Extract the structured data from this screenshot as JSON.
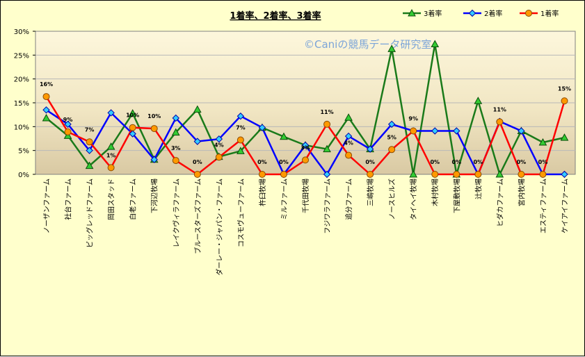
{
  "chart_data": {
    "type": "line",
    "title": "1着率、2着率、3着率",
    "watermark": "©Caniの競馬データ研究室",
    "ylim": [
      0,
      30
    ],
    "yticks": [
      "0%",
      "5%",
      "10%",
      "15%",
      "20%",
      "25%",
      "30%"
    ],
    "grid": true,
    "legend_position": "top-right",
    "categories": [
      "ノーザンファーム",
      "社台ファーム",
      "ビッグレッドファーム",
      "岡田スタッド",
      "白老ファーム",
      "下河辺牧場",
      "レイクヴィラファーム",
      "ブルースターズファーム",
      "ダーレー・ジャパン・ファーム",
      "コスモヴューファーム",
      "杵臼牧場",
      "ミルファーム",
      "千代田牧場",
      "フジワラファーム",
      "追分ファーム",
      "三嶋牧場",
      "ノースヒルズ",
      "タイヘイ牧場",
      "木村牧場",
      "下屋敷牧場",
      "辻牧場",
      "ヒダカファーム",
      "宮内牧場",
      "エスティファーム",
      "ケイアイファーム"
    ],
    "series": [
      {
        "name": "3着率",
        "color": "#1a7a1a",
        "marker": "triangle",
        "marker_fill": "#33cc33",
        "values": [
          11.8,
          8.1,
          1.8,
          5.8,
          12.8,
          3.1,
          8.8,
          13.6,
          3.7,
          4.9,
          9.8,
          7.9,
          6.1,
          5.3,
          11.9,
          5.3,
          26.3,
          0,
          27.3,
          0,
          15.4,
          0,
          9.1,
          6.7,
          7.7
        ]
      },
      {
        "name": "2着率",
        "color": "#0000ff",
        "marker": "diamond",
        "marker_fill": "#33ccff",
        "values": [
          13.5,
          10.5,
          5.0,
          12.9,
          8.5,
          3.1,
          11.8,
          6.9,
          7.4,
          12.2,
          9.8,
          0,
          6.1,
          0,
          8.0,
          5.3,
          10.5,
          9.1,
          9.1,
          9.1,
          0,
          11.1,
          9.1,
          0,
          0
        ]
      },
      {
        "name": "1着率",
        "color": "#ff0000",
        "marker": "circle",
        "marker_fill": "#ff9900",
        "values": [
          16.3,
          8.9,
          6.8,
          1.4,
          9.8,
          9.6,
          2.9,
          0,
          3.6,
          7.2,
          0,
          0,
          3.0,
          10.5,
          4.0,
          0,
          5.2,
          9.1,
          0,
          0,
          0,
          11.0,
          0,
          0,
          15.4
        ],
        "labels": [
          "16%",
          "9%",
          "7%",
          "1%",
          "10%",
          "10%",
          "3%",
          "0%",
          "4%",
          "7%",
          "0%",
          "0%",
          "3%",
          "11%",
          "4%",
          "0%",
          "5%",
          "9%",
          "0%",
          "0%",
          "0%",
          "11%",
          "0%",
          "0%",
          "15%"
        ]
      }
    ]
  }
}
